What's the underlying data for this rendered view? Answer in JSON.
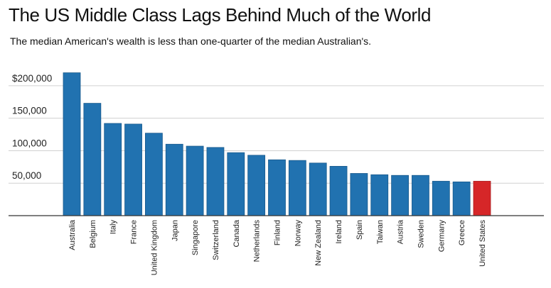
{
  "title": "The US Middle Class Lags Behind Much of the World",
  "subtitle": "The median American's wealth is less than one-quarter of the median Australian's.",
  "colors": {
    "bar": "#2172b0",
    "highlight": "#d62628",
    "grid": "#d0d0d0",
    "axis": "#333333"
  },
  "chart_data": {
    "type": "bar",
    "categories": [
      "Australia",
      "Belgium",
      "Italy",
      "France",
      "United Kingdom",
      "Japan",
      "Singapore",
      "Switzerland",
      "Canada",
      "Netherlands",
      "Finland",
      "Norway",
      "New Zealand",
      "Ireland",
      "Spain",
      "Taiwan",
      "Austria",
      "Sweden",
      "Germany",
      "Greece",
      "United States"
    ],
    "values": [
      220000,
      173000,
      142000,
      141000,
      127000,
      110000,
      107000,
      105000,
      97000,
      93000,
      86000,
      85000,
      81000,
      76000,
      65000,
      63000,
      62000,
      62000,
      53000,
      52000,
      53000
    ],
    "highlight": "United States",
    "yticks": [
      50000,
      100000,
      150000,
      200000
    ],
    "ytick_labels": [
      "50,000",
      "100,000",
      "150,000",
      "$200,000"
    ],
    "ylim": [
      0,
      225000
    ],
    "grid": true,
    "xlabel": "",
    "ylabel": ""
  }
}
